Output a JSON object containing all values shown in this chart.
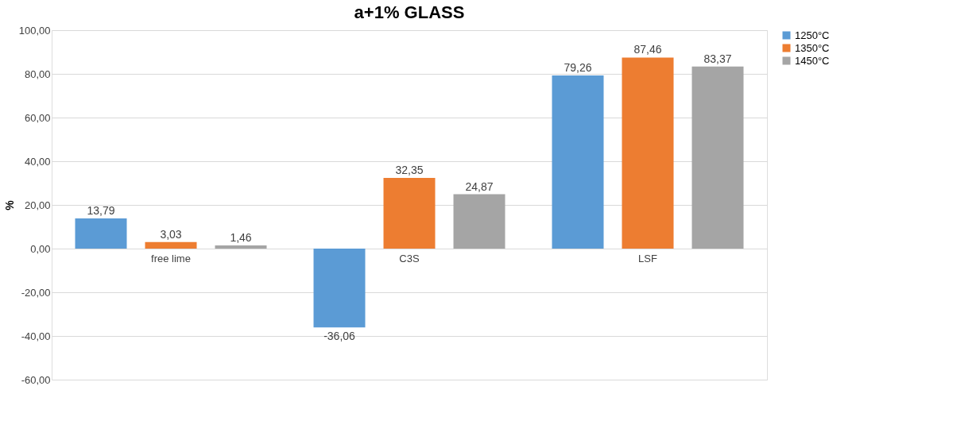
{
  "chart_data": {
    "type": "bar",
    "title": "a+1% GLASS",
    "ylabel": "%",
    "categories": [
      "free lime",
      "C3S",
      "LSF"
    ],
    "series": [
      {
        "name": "1250°C",
        "color": "#5b9bd5",
        "values": [
          13.79,
          -36.06,
          79.26
        ],
        "value_labels": [
          "13,79",
          "-36,06",
          "79,26"
        ]
      },
      {
        "name": "1350°C",
        "color": "#ed7d31",
        "values": [
          3.03,
          32.35,
          87.46
        ],
        "value_labels": [
          "3,03",
          "32,35",
          "87,46"
        ]
      },
      {
        "name": "1450°C",
        "color": "#a5a5a5",
        "values": [
          1.46,
          24.87,
          83.37
        ],
        "value_labels": [
          "1,46",
          "24,87",
          "83,37"
        ]
      }
    ],
    "ylim": [
      -60,
      100
    ],
    "yticks": [
      {
        "value": -60,
        "label": "-60,00"
      },
      {
        "value": -40,
        "label": "-40,00"
      },
      {
        "value": -20,
        "label": "-20,00"
      },
      {
        "value": 0,
        "label": "0,00"
      },
      {
        "value": 20,
        "label": "20,00"
      },
      {
        "value": 40,
        "label": "40,00"
      },
      {
        "value": 60,
        "label": "60,00"
      },
      {
        "value": 80,
        "label": "80,00"
      },
      {
        "value": 100,
        "label": "100,00"
      }
    ],
    "grid": "y",
    "legend": "right"
  }
}
